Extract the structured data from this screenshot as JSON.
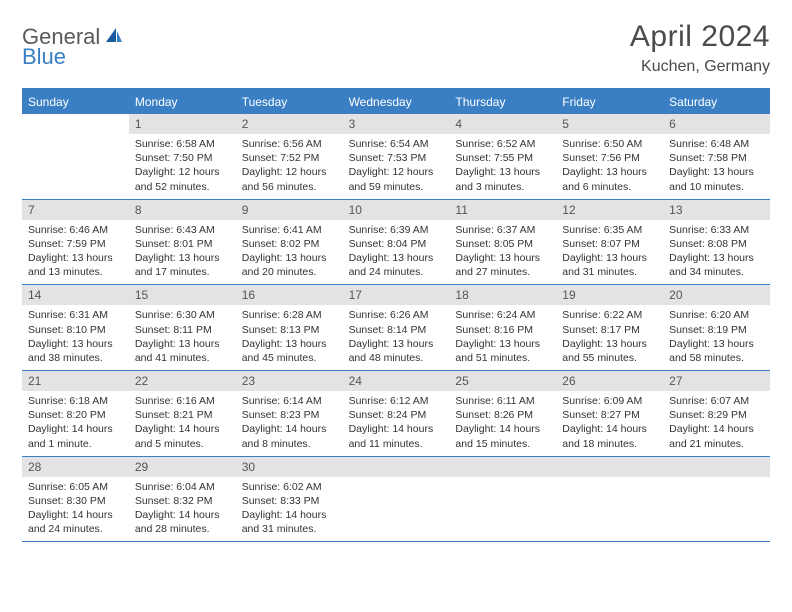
{
  "branding": {
    "logo_part1": "General",
    "logo_part2": "Blue",
    "logo_color1": "#5a5a5a",
    "logo_color2": "#3a7fc4"
  },
  "header": {
    "month_title": "April 2024",
    "location": "Kuchen, Germany"
  },
  "colors": {
    "header_bg": "#3a7fc4",
    "header_text": "#ffffff",
    "daynum_bg": "#e3e3e3",
    "daynum_text": "#555555",
    "body_text": "#333333",
    "border": "#3a7fc4",
    "page_bg": "#ffffff"
  },
  "typography": {
    "title_fontsize": 30,
    "location_fontsize": 16,
    "dayheader_fontsize": 12,
    "daynum_fontsize": 12,
    "body_fontsize": 10.5
  },
  "day_names": [
    "Sunday",
    "Monday",
    "Tuesday",
    "Wednesday",
    "Thursday",
    "Friday",
    "Saturday"
  ],
  "weeks": [
    [
      null,
      {
        "num": "1",
        "sunrise": "Sunrise: 6:58 AM",
        "sunset": "Sunset: 7:50 PM",
        "daylight": "Daylight: 12 hours and 52 minutes."
      },
      {
        "num": "2",
        "sunrise": "Sunrise: 6:56 AM",
        "sunset": "Sunset: 7:52 PM",
        "daylight": "Daylight: 12 hours and 56 minutes."
      },
      {
        "num": "3",
        "sunrise": "Sunrise: 6:54 AM",
        "sunset": "Sunset: 7:53 PM",
        "daylight": "Daylight: 12 hours and 59 minutes."
      },
      {
        "num": "4",
        "sunrise": "Sunrise: 6:52 AM",
        "sunset": "Sunset: 7:55 PM",
        "daylight": "Daylight: 13 hours and 3 minutes."
      },
      {
        "num": "5",
        "sunrise": "Sunrise: 6:50 AM",
        "sunset": "Sunset: 7:56 PM",
        "daylight": "Daylight: 13 hours and 6 minutes."
      },
      {
        "num": "6",
        "sunrise": "Sunrise: 6:48 AM",
        "sunset": "Sunset: 7:58 PM",
        "daylight": "Daylight: 13 hours and 10 minutes."
      }
    ],
    [
      {
        "num": "7",
        "sunrise": "Sunrise: 6:46 AM",
        "sunset": "Sunset: 7:59 PM",
        "daylight": "Daylight: 13 hours and 13 minutes."
      },
      {
        "num": "8",
        "sunrise": "Sunrise: 6:43 AM",
        "sunset": "Sunset: 8:01 PM",
        "daylight": "Daylight: 13 hours and 17 minutes."
      },
      {
        "num": "9",
        "sunrise": "Sunrise: 6:41 AM",
        "sunset": "Sunset: 8:02 PM",
        "daylight": "Daylight: 13 hours and 20 minutes."
      },
      {
        "num": "10",
        "sunrise": "Sunrise: 6:39 AM",
        "sunset": "Sunset: 8:04 PM",
        "daylight": "Daylight: 13 hours and 24 minutes."
      },
      {
        "num": "11",
        "sunrise": "Sunrise: 6:37 AM",
        "sunset": "Sunset: 8:05 PM",
        "daylight": "Daylight: 13 hours and 27 minutes."
      },
      {
        "num": "12",
        "sunrise": "Sunrise: 6:35 AM",
        "sunset": "Sunset: 8:07 PM",
        "daylight": "Daylight: 13 hours and 31 minutes."
      },
      {
        "num": "13",
        "sunrise": "Sunrise: 6:33 AM",
        "sunset": "Sunset: 8:08 PM",
        "daylight": "Daylight: 13 hours and 34 minutes."
      }
    ],
    [
      {
        "num": "14",
        "sunrise": "Sunrise: 6:31 AM",
        "sunset": "Sunset: 8:10 PM",
        "daylight": "Daylight: 13 hours and 38 minutes."
      },
      {
        "num": "15",
        "sunrise": "Sunrise: 6:30 AM",
        "sunset": "Sunset: 8:11 PM",
        "daylight": "Daylight: 13 hours and 41 minutes."
      },
      {
        "num": "16",
        "sunrise": "Sunrise: 6:28 AM",
        "sunset": "Sunset: 8:13 PM",
        "daylight": "Daylight: 13 hours and 45 minutes."
      },
      {
        "num": "17",
        "sunrise": "Sunrise: 6:26 AM",
        "sunset": "Sunset: 8:14 PM",
        "daylight": "Daylight: 13 hours and 48 minutes."
      },
      {
        "num": "18",
        "sunrise": "Sunrise: 6:24 AM",
        "sunset": "Sunset: 8:16 PM",
        "daylight": "Daylight: 13 hours and 51 minutes."
      },
      {
        "num": "19",
        "sunrise": "Sunrise: 6:22 AM",
        "sunset": "Sunset: 8:17 PM",
        "daylight": "Daylight: 13 hours and 55 minutes."
      },
      {
        "num": "20",
        "sunrise": "Sunrise: 6:20 AM",
        "sunset": "Sunset: 8:19 PM",
        "daylight": "Daylight: 13 hours and 58 minutes."
      }
    ],
    [
      {
        "num": "21",
        "sunrise": "Sunrise: 6:18 AM",
        "sunset": "Sunset: 8:20 PM",
        "daylight": "Daylight: 14 hours and 1 minute."
      },
      {
        "num": "22",
        "sunrise": "Sunrise: 6:16 AM",
        "sunset": "Sunset: 8:21 PM",
        "daylight": "Daylight: 14 hours and 5 minutes."
      },
      {
        "num": "23",
        "sunrise": "Sunrise: 6:14 AM",
        "sunset": "Sunset: 8:23 PM",
        "daylight": "Daylight: 14 hours and 8 minutes."
      },
      {
        "num": "24",
        "sunrise": "Sunrise: 6:12 AM",
        "sunset": "Sunset: 8:24 PM",
        "daylight": "Daylight: 14 hours and 11 minutes."
      },
      {
        "num": "25",
        "sunrise": "Sunrise: 6:11 AM",
        "sunset": "Sunset: 8:26 PM",
        "daylight": "Daylight: 14 hours and 15 minutes."
      },
      {
        "num": "26",
        "sunrise": "Sunrise: 6:09 AM",
        "sunset": "Sunset: 8:27 PM",
        "daylight": "Daylight: 14 hours and 18 minutes."
      },
      {
        "num": "27",
        "sunrise": "Sunrise: 6:07 AM",
        "sunset": "Sunset: 8:29 PM",
        "daylight": "Daylight: 14 hours and 21 minutes."
      }
    ],
    [
      {
        "num": "28",
        "sunrise": "Sunrise: 6:05 AM",
        "sunset": "Sunset: 8:30 PM",
        "daylight": "Daylight: 14 hours and 24 minutes."
      },
      {
        "num": "29",
        "sunrise": "Sunrise: 6:04 AM",
        "sunset": "Sunset: 8:32 PM",
        "daylight": "Daylight: 14 hours and 28 minutes."
      },
      {
        "num": "30",
        "sunrise": "Sunrise: 6:02 AM",
        "sunset": "Sunset: 8:33 PM",
        "daylight": "Daylight: 14 hours and 31 minutes."
      },
      null,
      null,
      null,
      null
    ]
  ]
}
